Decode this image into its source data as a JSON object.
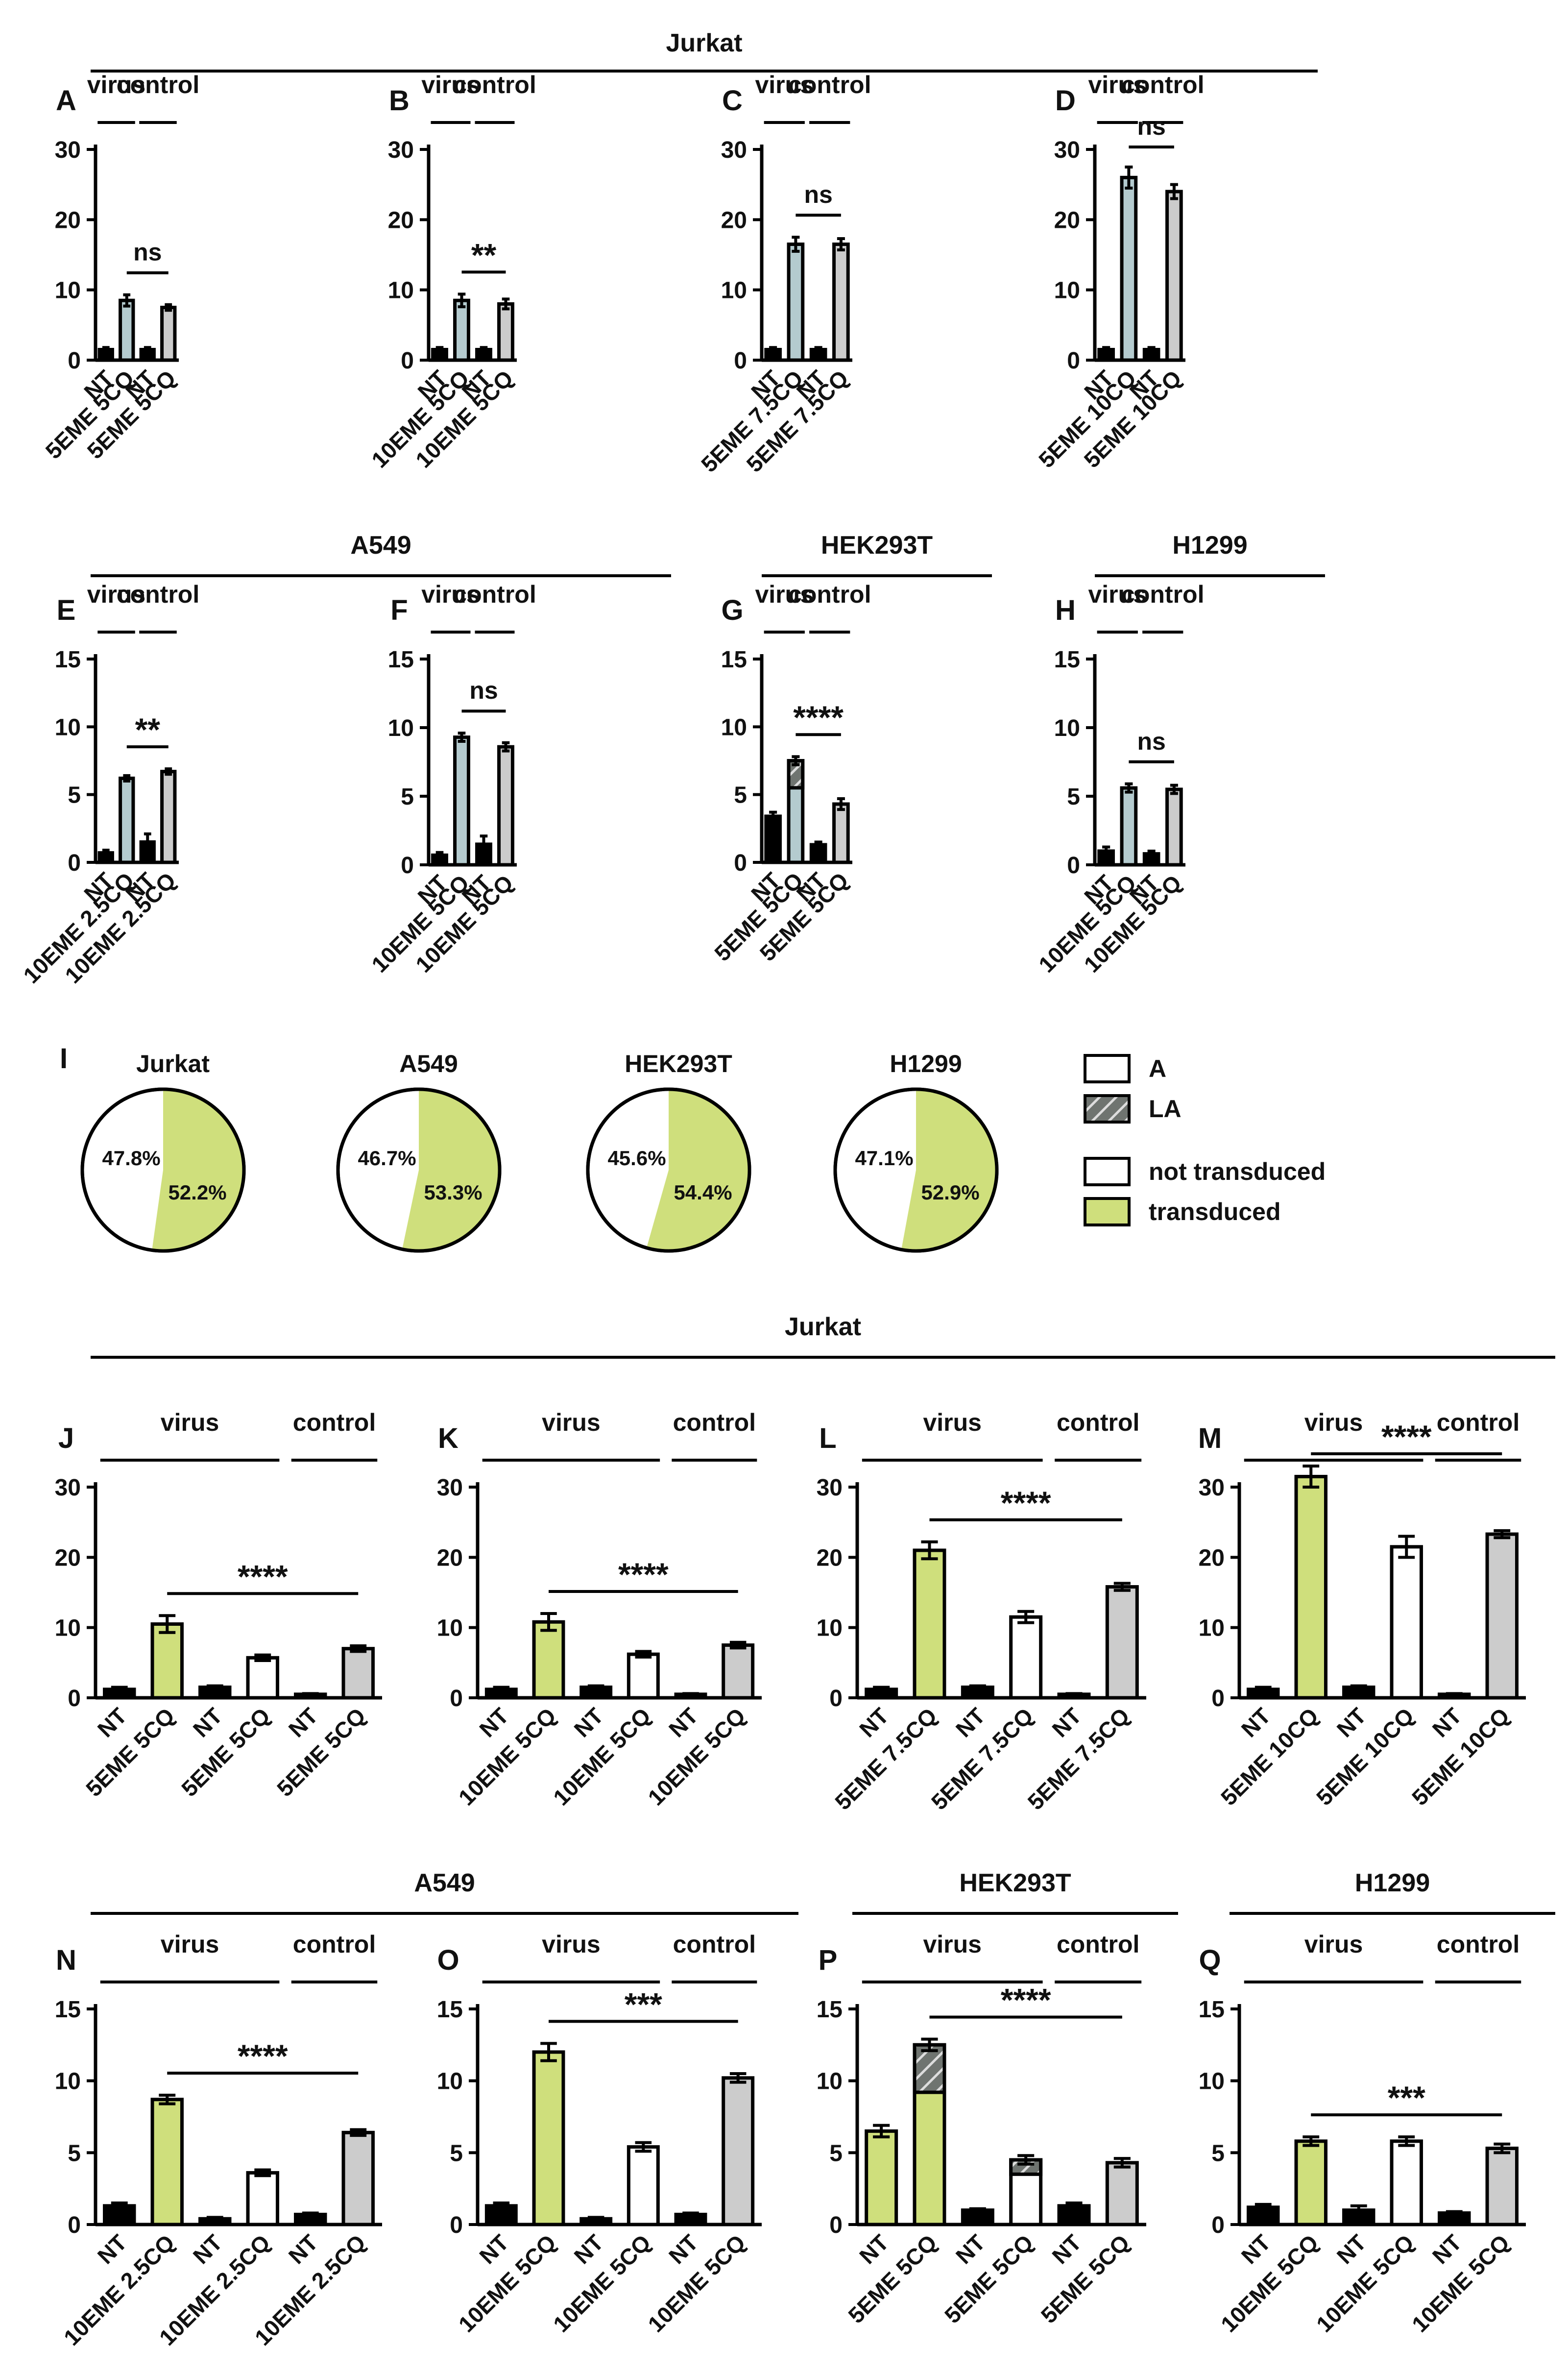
{
  "colors": {
    "virus": "#b4cbcf",
    "control": "#cccccc",
    "nt": "#000000",
    "transduced": "#cfdf7c",
    "not_transduced": "#ffffff"
  },
  "legend": {
    "items": [
      {
        "label": "A",
        "fill": "white"
      },
      {
        "label": "LA",
        "fill": "hatch"
      },
      {
        "label": "not transduced",
        "fill": "white"
      },
      {
        "label": "transduced",
        "fill": "green"
      }
    ]
  },
  "chart_data": [
    {
      "type": "bar",
      "panel_label": "A",
      "cell_line": "Jurkat",
      "group_labels": [
        "virus",
        "control"
      ],
      "categories": [
        "NT",
        "5EME 5CQ",
        "NT",
        "5EME 5CQ"
      ],
      "values": [
        1.5,
        8.5,
        1.5,
        7.5
      ],
      "errors": [
        0.3,
        0.8,
        0.3,
        0.4
      ],
      "fills": [
        "nt",
        "virus",
        "nt",
        "control"
      ],
      "ylim": [
        0,
        30
      ],
      "yticks": [
        0,
        10,
        20,
        30
      ],
      "significance": {
        "text": "ns",
        "from": 1,
        "to": 3
      }
    },
    {
      "type": "bar",
      "panel_label": "B",
      "cell_line": "Jurkat",
      "group_labels": [
        "virus",
        "control"
      ],
      "categories": [
        "NT",
        "10EME 5CQ",
        "NT",
        "10EME 5CQ"
      ],
      "values": [
        1.5,
        8.5,
        1.5,
        8.0
      ],
      "errors": [
        0.3,
        0.9,
        0.3,
        0.7
      ],
      "fills": [
        "nt",
        "virus",
        "nt",
        "control"
      ],
      "ylim": [
        0,
        30
      ],
      "yticks": [
        0,
        10,
        20,
        30
      ],
      "significance": {
        "text": "**",
        "from": 1,
        "to": 3
      }
    },
    {
      "type": "bar",
      "panel_label": "C",
      "cell_line": "Jurkat",
      "group_labels": [
        "virus",
        "control"
      ],
      "categories": [
        "NT",
        "5EME 7.5CQ",
        "NT",
        "5EME 7.5CQ"
      ],
      "values": [
        1.5,
        16.5,
        1.5,
        16.5
      ],
      "errors": [
        0.3,
        1.0,
        0.3,
        0.8
      ],
      "fills": [
        "nt",
        "virus",
        "nt",
        "control"
      ],
      "ylim": [
        0,
        30
      ],
      "yticks": [
        0,
        10,
        20,
        30
      ],
      "significance": {
        "text": "ns",
        "from": 1,
        "to": 3
      }
    },
    {
      "type": "bar",
      "panel_label": "D",
      "cell_line": "Jurkat",
      "group_labels": [
        "virus",
        "control"
      ],
      "categories": [
        "NT",
        "5EME 10CQ",
        "NT",
        "5EME 10CQ"
      ],
      "values": [
        1.5,
        26.0,
        1.5,
        24.0
      ],
      "errors": [
        0.3,
        1.5,
        0.3,
        1.0
      ],
      "fills": [
        "nt",
        "virus",
        "nt",
        "control"
      ],
      "ylim": [
        0,
        30
      ],
      "yticks": [
        0,
        10,
        20,
        30
      ],
      "significance": {
        "text": "ns",
        "from": 1,
        "to": 3
      }
    },
    {
      "type": "bar",
      "panel_label": "E",
      "cell_line": "A549",
      "group_labels": [
        "virus",
        "control"
      ],
      "categories": [
        "NT",
        "10EME 2.5CQ",
        "NT",
        "10EME 2.5CQ"
      ],
      "values": [
        0.7,
        6.2,
        1.5,
        6.7
      ],
      "errors": [
        0.2,
        0.2,
        0.6,
        0.2
      ],
      "fills": [
        "nt",
        "virus",
        "nt",
        "control"
      ],
      "ylim": [
        0,
        15
      ],
      "yticks": [
        0,
        5,
        10,
        15
      ],
      "significance": {
        "text": "**",
        "from": 1,
        "to": 3
      }
    },
    {
      "type": "bar",
      "panel_label": "F",
      "cell_line": "A549",
      "group_labels": [
        "virus",
        "control"
      ],
      "categories": [
        "NT",
        "10EME 5CQ",
        "NT",
        "10EME 5CQ"
      ],
      "values": [
        0.7,
        9.3,
        1.5,
        8.6
      ],
      "errors": [
        0.2,
        0.3,
        0.6,
        0.3
      ],
      "fills": [
        "nt",
        "virus",
        "nt",
        "control"
      ],
      "ylim": [
        0,
        15
      ],
      "yticks": [
        0,
        5,
        10,
        15
      ],
      "significance": {
        "text": "ns",
        "from": 1,
        "to": 3
      }
    },
    {
      "type": "bar",
      "panel_label": "G",
      "cell_line": "HEK293T",
      "group_labels": [
        "virus",
        "control"
      ],
      "categories": [
        "NT",
        "5EME 5CQ",
        "NT",
        "5EME 5CQ"
      ],
      "values": [
        3.4,
        7.5,
        1.3,
        4.3
      ],
      "errors": [
        0.3,
        0.3,
        0.2,
        0.4
      ],
      "la": [
        0,
        2.0,
        0,
        0
      ],
      "fills": [
        "nt",
        "virus",
        "nt",
        "control"
      ],
      "ylim": [
        0,
        15
      ],
      "yticks": [
        0,
        5,
        10,
        15
      ],
      "significance": {
        "text": "****",
        "from": 1,
        "to": 3
      }
    },
    {
      "type": "bar",
      "panel_label": "H",
      "cell_line": "H1299",
      "group_labels": [
        "virus",
        "control"
      ],
      "categories": [
        "NT",
        "10EME 5CQ",
        "NT",
        "10EME 5CQ"
      ],
      "values": [
        1.0,
        5.6,
        0.8,
        5.5
      ],
      "errors": [
        0.3,
        0.3,
        0.2,
        0.3
      ],
      "fills": [
        "nt",
        "virus",
        "nt",
        "control"
      ],
      "ylim": [
        0,
        15
      ],
      "yticks": [
        0,
        5,
        10,
        15
      ],
      "significance": {
        "text": "ns",
        "from": 1,
        "to": 3
      }
    },
    {
      "type": "pie",
      "panel_label": "I",
      "title": "Jurkat",
      "values": [
        52.2,
        47.8
      ],
      "labels": [
        "52.2%",
        "47.8%"
      ]
    },
    {
      "type": "pie",
      "title": "A549",
      "values": [
        53.3,
        46.7
      ],
      "labels": [
        "53.3%",
        "46.7%"
      ]
    },
    {
      "type": "pie",
      "title": "HEK293T",
      "values": [
        54.4,
        45.6
      ],
      "labels": [
        "54.4%",
        "45.6%"
      ]
    },
    {
      "type": "pie",
      "title": "H1299",
      "values": [
        52.9,
        47.1
      ],
      "labels": [
        "52.9%",
        "47.1%"
      ]
    },
    {
      "type": "bar",
      "panel_label": "J",
      "cell_line": "Jurkat",
      "group_labels": [
        "virus",
        "control"
      ],
      "categories": [
        "NT",
        "5EME 5CQ",
        "NT",
        "5EME 5CQ",
        "NT",
        "5EME 5CQ"
      ],
      "values": [
        1.2,
        10.5,
        1.5,
        5.7,
        0.5,
        7.0
      ],
      "errors": [
        0.3,
        1.2,
        0.2,
        0.4,
        0.1,
        0.4
      ],
      "fills": [
        "nt",
        "transduced",
        "nt",
        "white",
        "nt",
        "control"
      ],
      "ylim": [
        0,
        30
      ],
      "yticks": [
        0,
        10,
        20,
        30
      ],
      "significance": {
        "text": "****",
        "from": 1,
        "to": 5
      }
    },
    {
      "type": "bar",
      "panel_label": "K",
      "cell_line": "Jurkat",
      "group_labels": [
        "virus",
        "control"
      ],
      "categories": [
        "NT",
        "10EME 5CQ",
        "NT",
        "10EME 5CQ",
        "NT",
        "10EME 5CQ"
      ],
      "values": [
        1.2,
        10.8,
        1.5,
        6.2,
        0.5,
        7.5
      ],
      "errors": [
        0.3,
        1.2,
        0.2,
        0.4,
        0.1,
        0.4
      ],
      "fills": [
        "nt",
        "transduced",
        "nt",
        "white",
        "nt",
        "control"
      ],
      "ylim": [
        0,
        30
      ],
      "yticks": [
        0,
        10,
        20,
        30
      ],
      "significance": {
        "text": "****",
        "from": 1,
        "to": 5
      }
    },
    {
      "type": "bar",
      "panel_label": "L",
      "cell_line": "Jurkat",
      "group_labels": [
        "virus",
        "control"
      ],
      "categories": [
        "NT",
        "5EME 7.5CQ",
        "NT",
        "5EME 7.5CQ",
        "NT",
        "5EME 7.5CQ"
      ],
      "values": [
        1.2,
        21.0,
        1.5,
        11.5,
        0.5,
        15.8
      ],
      "errors": [
        0.3,
        1.2,
        0.2,
        0.8,
        0.1,
        0.5
      ],
      "fills": [
        "nt",
        "transduced",
        "nt",
        "white",
        "nt",
        "control"
      ],
      "ylim": [
        0,
        30
      ],
      "yticks": [
        0,
        10,
        20,
        30
      ],
      "significance": {
        "text": "****",
        "from": 1,
        "to": 5
      }
    },
    {
      "type": "bar",
      "panel_label": "M",
      "cell_line": "Jurkat",
      "group_labels": [
        "virus",
        "control"
      ],
      "categories": [
        "NT",
        "5EME 10CQ",
        "NT",
        "5EME 10CQ",
        "NT",
        "5EME 10CQ"
      ],
      "values": [
        1.2,
        31.5,
        1.5,
        21.5,
        0.5,
        23.3
      ],
      "errors": [
        0.3,
        1.5,
        0.2,
        1.5,
        0.1,
        0.5
      ],
      "fills": [
        "nt",
        "transduced",
        "nt",
        "white",
        "nt",
        "control"
      ],
      "ylim": [
        0,
        30
      ],
      "yticks": [
        0,
        10,
        20,
        30
      ],
      "significance": {
        "text": "****",
        "from": 1,
        "to": 5
      }
    },
    {
      "type": "bar",
      "panel_label": "N",
      "cell_line": "A549",
      "group_labels": [
        "virus",
        "control"
      ],
      "categories": [
        "NT",
        "10EME 2.5CQ",
        "NT",
        "10EME 2.5CQ",
        "NT",
        "10EME 2.5CQ"
      ],
      "values": [
        1.3,
        8.7,
        0.4,
        3.6,
        0.7,
        6.4
      ],
      "errors": [
        0.2,
        0.3,
        0.1,
        0.2,
        0.1,
        0.2
      ],
      "fills": [
        "nt",
        "transduced",
        "nt",
        "white",
        "nt",
        "control"
      ],
      "ylim": [
        0,
        15
      ],
      "yticks": [
        0,
        5,
        10,
        15
      ],
      "significance": {
        "text": "****",
        "from": 1,
        "to": 5
      }
    },
    {
      "type": "bar",
      "panel_label": "O",
      "cell_line": "A549",
      "group_labels": [
        "virus",
        "control"
      ],
      "categories": [
        "NT",
        "10EME 5CQ",
        "NT",
        "10EME 5CQ",
        "NT",
        "10EME 5CQ"
      ],
      "values": [
        1.3,
        12.0,
        0.4,
        5.4,
        0.7,
        10.2
      ],
      "errors": [
        0.2,
        0.6,
        0.1,
        0.3,
        0.1,
        0.3
      ],
      "fills": [
        "nt",
        "transduced",
        "nt",
        "white",
        "nt",
        "control"
      ],
      "ylim": [
        0,
        15
      ],
      "yticks": [
        0,
        5,
        10,
        15
      ],
      "significance": {
        "text": "***",
        "from": 1,
        "to": 5
      }
    },
    {
      "type": "bar",
      "panel_label": "P",
      "cell_line": "HEK293T",
      "group_labels": [
        "virus",
        "control"
      ],
      "categories": [
        "NT",
        "5EME 5CQ",
        "NT",
        "5EME 5CQ",
        "NT",
        "5EME 5CQ"
      ],
      "values": [
        6.5,
        12.5,
        1.0,
        4.5,
        1.3,
        4.3
      ],
      "errors": [
        0.4,
        0.4,
        0.1,
        0.3,
        0.2,
        0.3
      ],
      "la": [
        0,
        3.3,
        0,
        1.0,
        0,
        0
      ],
      "fills": [
        "transduced",
        "transduced",
        "nt",
        "white",
        "nt",
        "control"
      ],
      "ylim": [
        0,
        15
      ],
      "yticks": [
        0,
        5,
        10,
        15
      ],
      "significance": {
        "text": "****",
        "from": 1,
        "to": 5
      }
    },
    {
      "type": "bar",
      "panel_label": "Q",
      "cell_line": "H1299",
      "group_labels": [
        "virus",
        "control"
      ],
      "categories": [
        "NT",
        "10EME 5CQ",
        "NT",
        "10EME 5CQ",
        "NT",
        "10EME 5CQ"
      ],
      "values": [
        1.2,
        5.8,
        1.0,
        5.8,
        0.8,
        5.3
      ],
      "errors": [
        0.2,
        0.3,
        0.3,
        0.3,
        0.1,
        0.3
      ],
      "fills": [
        "nt",
        "transduced",
        "nt",
        "white",
        "nt",
        "control"
      ],
      "ylim": [
        0,
        15
      ],
      "yticks": [
        0,
        5,
        10,
        15
      ],
      "significance": {
        "text": "***",
        "from": 1,
        "to": 5
      }
    }
  ]
}
